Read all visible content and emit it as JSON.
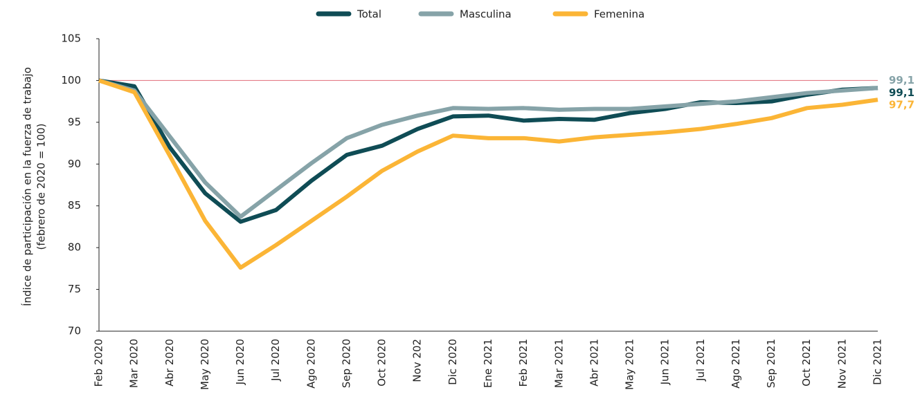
{
  "chart_data": {
    "type": "line",
    "ylabel": [
      "Índice de participación en la fuerza de trabajo",
      "(febrero de 2020 = 100)"
    ],
    "categories": [
      "Feb 2020",
      "Mar 2020",
      "Abr 2020",
      "May 2020",
      "Jun 2020",
      "Jul 2020",
      "Ago 2020",
      "Sep 2020",
      "Oct 2020",
      "Nov 202",
      "Dic 2020",
      "Ene 2021",
      "Feb 2021",
      "Mar 2021",
      "Abr 2021",
      "May 2021",
      "Jun 2021",
      "Jul 2021",
      "Ago 2021",
      "Sep 2021",
      "Oct 2021",
      "Nov 2021",
      "Dic 2021"
    ],
    "series": [
      {
        "name": "Total",
        "color": "#0f4c55",
        "values": [
          100,
          99.3,
          92.0,
          86.5,
          83.1,
          84.5,
          88.0,
          91.1,
          92.2,
          94.2,
          95.7,
          95.8,
          95.2,
          95.4,
          95.3,
          96.1,
          96.6,
          97.4,
          97.3,
          97.5,
          98.3,
          98.9,
          99.1
        ],
        "value_labels": [
          null,
          null,
          null,
          null,
          null,
          null,
          null,
          null,
          null,
          null,
          null,
          null,
          null,
          null,
          null,
          null,
          null,
          null,
          null,
          null,
          null,
          null,
          "99,1"
        ]
      },
      {
        "name": "Masculina",
        "color": "#86a3a8",
        "values": [
          100,
          98.8,
          93.3,
          87.8,
          83.7,
          86.9,
          90.1,
          93.1,
          94.7,
          95.8,
          96.7,
          96.6,
          96.7,
          96.5,
          96.6,
          96.6,
          96.9,
          97.2,
          97.5,
          98.0,
          98.5,
          98.8,
          99.1
        ],
        "value_labels": [
          null,
          null,
          null,
          null,
          null,
          null,
          null,
          null,
          null,
          null,
          null,
          null,
          null,
          null,
          null,
          null,
          null,
          null,
          null,
          null,
          null,
          null,
          "99,1"
        ]
      },
      {
        "name": "Femenina",
        "color": "#fbb536",
        "values": [
          100,
          98.6,
          91.0,
          83.2,
          77.6,
          80.3,
          83.2,
          86.1,
          89.2,
          91.5,
          93.4,
          93.1,
          93.1,
          92.7,
          93.2,
          93.5,
          93.8,
          94.2,
          94.8,
          95.5,
          96.7,
          97.1,
          97.7
        ],
        "value_labels": [
          null,
          null,
          null,
          null,
          null,
          null,
          null,
          null,
          null,
          null,
          null,
          null,
          null,
          null,
          null,
          null,
          null,
          null,
          null,
          null,
          null,
          null,
          "97,7"
        ]
      }
    ],
    "reference_line": 100,
    "reference_color": "#e06b78",
    "ylim": [
      70,
      105
    ],
    "yticks": [
      70,
      75,
      80,
      85,
      90,
      95,
      100,
      105
    ],
    "grid": false,
    "legend": "top"
  }
}
